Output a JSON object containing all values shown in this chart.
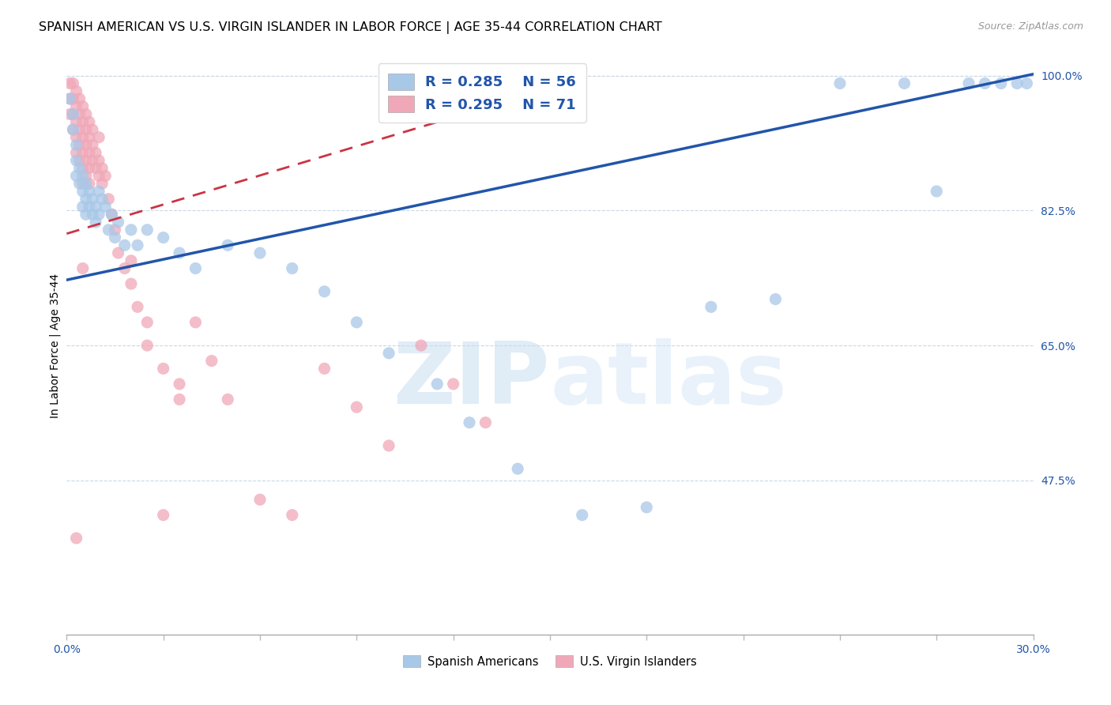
{
  "title": "SPANISH AMERICAN VS U.S. VIRGIN ISLANDER IN LABOR FORCE | AGE 35-44 CORRELATION CHART",
  "source": "Source: ZipAtlas.com",
  "ylabel_label": "In Labor Force | Age 35-44",
  "xlim": [
    0.0,
    0.3
  ],
  "ylim": [
    0.275,
    1.025
  ],
  "ylabel_ticks": [
    47.5,
    65.0,
    82.5,
    100.0
  ],
  "blue_R": 0.285,
  "blue_N": 56,
  "pink_R": 0.295,
  "pink_N": 71,
  "legend_label_blue": "Spanish Americans",
  "legend_label_pink": "U.S. Virgin Islanders",
  "dot_color_blue": "#a8c8e8",
  "dot_color_pink": "#f0a8b8",
  "line_color_blue": "#2255aa",
  "line_color_pink": "#cc3344",
  "watermark_zip": "ZIP",
  "watermark_atlas": "atlas",
  "title_fontsize": 11.5,
  "axis_label_fontsize": 10,
  "tick_fontsize": 10,
  "blue_line_x": [
    0.0,
    0.3
  ],
  "blue_line_y": [
    0.735,
    1.002
  ],
  "pink_line_x": [
    0.0,
    0.135
  ],
  "pink_line_y": [
    0.795,
    0.965
  ],
  "blue_x": [
    0.001,
    0.002,
    0.002,
    0.003,
    0.003,
    0.003,
    0.004,
    0.004,
    0.005,
    0.005,
    0.005,
    0.006,
    0.006,
    0.006,
    0.007,
    0.007,
    0.008,
    0.008,
    0.009,
    0.009,
    0.01,
    0.01,
    0.011,
    0.012,
    0.013,
    0.014,
    0.015,
    0.016,
    0.018,
    0.02,
    0.022,
    0.025,
    0.03,
    0.035,
    0.04,
    0.05,
    0.06,
    0.07,
    0.08,
    0.09,
    0.1,
    0.115,
    0.125,
    0.14,
    0.16,
    0.18,
    0.2,
    0.22,
    0.24,
    0.26,
    0.27,
    0.28,
    0.285,
    0.29,
    0.295,
    0.298
  ],
  "blue_y": [
    0.97,
    0.95,
    0.93,
    0.91,
    0.89,
    0.87,
    0.88,
    0.86,
    0.87,
    0.85,
    0.83,
    0.86,
    0.84,
    0.82,
    0.85,
    0.83,
    0.84,
    0.82,
    0.83,
    0.81,
    0.85,
    0.82,
    0.84,
    0.83,
    0.8,
    0.82,
    0.79,
    0.81,
    0.78,
    0.8,
    0.78,
    0.8,
    0.79,
    0.77,
    0.75,
    0.78,
    0.77,
    0.75,
    0.72,
    0.68,
    0.64,
    0.6,
    0.55,
    0.49,
    0.43,
    0.44,
    0.7,
    0.71,
    0.99,
    0.99,
    0.85,
    0.99,
    0.99,
    0.99,
    0.99,
    0.99
  ],
  "pink_x": [
    0.001,
    0.001,
    0.001,
    0.002,
    0.002,
    0.002,
    0.002,
    0.003,
    0.003,
    0.003,
    0.003,
    0.003,
    0.004,
    0.004,
    0.004,
    0.004,
    0.004,
    0.005,
    0.005,
    0.005,
    0.005,
    0.005,
    0.005,
    0.006,
    0.006,
    0.006,
    0.006,
    0.006,
    0.007,
    0.007,
    0.007,
    0.007,
    0.007,
    0.008,
    0.008,
    0.008,
    0.009,
    0.009,
    0.01,
    0.01,
    0.01,
    0.011,
    0.011,
    0.012,
    0.013,
    0.014,
    0.015,
    0.016,
    0.018,
    0.02,
    0.022,
    0.025,
    0.03,
    0.035,
    0.04,
    0.045,
    0.05,
    0.06,
    0.07,
    0.08,
    0.09,
    0.1,
    0.11,
    0.12,
    0.13,
    0.005,
    0.02,
    0.025,
    0.03,
    0.035,
    0.003
  ],
  "pink_y": [
    0.99,
    0.97,
    0.95,
    0.99,
    0.97,
    0.95,
    0.93,
    0.98,
    0.96,
    0.94,
    0.92,
    0.9,
    0.97,
    0.95,
    0.93,
    0.91,
    0.89,
    0.96,
    0.94,
    0.92,
    0.9,
    0.88,
    0.86,
    0.95,
    0.93,
    0.91,
    0.89,
    0.87,
    0.94,
    0.92,
    0.9,
    0.88,
    0.86,
    0.93,
    0.91,
    0.89,
    0.9,
    0.88,
    0.92,
    0.89,
    0.87,
    0.88,
    0.86,
    0.87,
    0.84,
    0.82,
    0.8,
    0.77,
    0.75,
    0.73,
    0.7,
    0.65,
    0.62,
    0.6,
    0.68,
    0.63,
    0.58,
    0.45,
    0.43,
    0.62,
    0.57,
    0.52,
    0.65,
    0.6,
    0.55,
    0.75,
    0.76,
    0.68,
    0.43,
    0.58,
    0.4
  ]
}
